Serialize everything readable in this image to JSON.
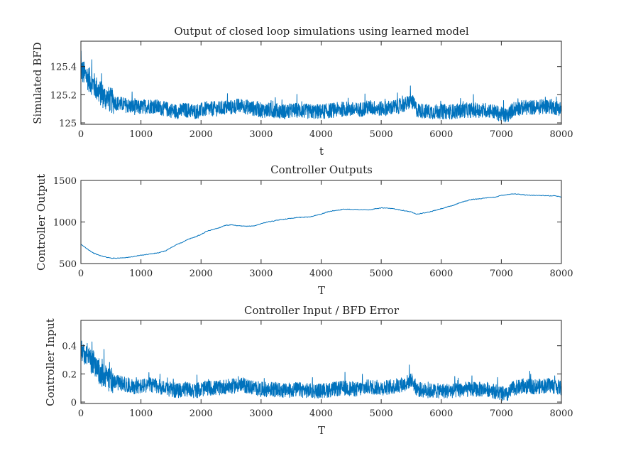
{
  "colors": {
    "series": "#0072bd",
    "axis": "#262626",
    "background": "#ffffff"
  },
  "chart_data": [
    {
      "type": "line",
      "title": "Output of closed loop simulations using learned model",
      "xlabel": "t",
      "ylabel": "Simulated BFD",
      "xlim": [
        0,
        8000
      ],
      "ylim": [
        124.99,
        125.58
      ],
      "xticks": [
        0,
        1000,
        2000,
        3000,
        4000,
        5000,
        6000,
        7000,
        8000
      ],
      "xtick_labels": [
        "0",
        "1000",
        "2000",
        "3000",
        "4000",
        "5000",
        "6000",
        "7000",
        "8000"
      ],
      "yticks": [
        125,
        125.2,
        125.4
      ],
      "ytick_labels": [
        "125",
        "125.2",
        "125.4"
      ],
      "grid": false,
      "series": [
        {
          "x": [
            0,
            50,
            100,
            150,
            200,
            250,
            300,
            350,
            400,
            450,
            500,
            600,
            700,
            800,
            900,
            1000,
            1100,
            1200,
            1300,
            1400,
            1500,
            1600,
            1700,
            1800,
            1900,
            2000,
            2100,
            2200,
            2300,
            2400,
            2500,
            2600,
            2700,
            2800,
            2900,
            3000,
            3200,
            3400,
            3600,
            3800,
            4000,
            4200,
            4400,
            4600,
            4800,
            5000,
            5200,
            5400,
            5500,
            5600,
            5800,
            6000,
            6200,
            6400,
            6600,
            6800,
            7000,
            7100,
            7200,
            7400,
            7600,
            7800,
            7900,
            8000
          ],
          "values": [
            125.38,
            125.35,
            125.33,
            125.3,
            125.28,
            125.25,
            125.22,
            125.2,
            125.18,
            125.17,
            125.16,
            125.14,
            125.13,
            125.12,
            125.11,
            125.11,
            125.12,
            125.12,
            125.11,
            125.1,
            125.09,
            125.08,
            125.09,
            125.09,
            125.08,
            125.09,
            125.1,
            125.1,
            125.1,
            125.11,
            125.11,
            125.12,
            125.12,
            125.11,
            125.1,
            125.09,
            125.09,
            125.08,
            125.09,
            125.08,
            125.08,
            125.09,
            125.1,
            125.09,
            125.11,
            125.1,
            125.11,
            125.13,
            125.16,
            125.09,
            125.08,
            125.08,
            125.08,
            125.09,
            125.09,
            125.09,
            125.06,
            125.05,
            125.1,
            125.11,
            125.11,
            125.12,
            125.11,
            125.1
          ]
        }
      ]
    },
    {
      "type": "line",
      "title": "Controller Outputs",
      "xlabel": "T",
      "ylabel": "Controller Output",
      "xlim": [
        0,
        8000
      ],
      "ylim": [
        500,
        1500
      ],
      "xticks": [
        0,
        1000,
        2000,
        3000,
        4000,
        5000,
        6000,
        7000,
        8000
      ],
      "xtick_labels": [
        "0",
        "1000",
        "2000",
        "3000",
        "4000",
        "5000",
        "6000",
        "7000",
        "8000"
      ],
      "yticks": [
        500,
        1000,
        1500
      ],
      "ytick_labels": [
        "500",
        "1000",
        "1500"
      ],
      "grid": false,
      "series": [
        {
          "x": [
            0,
            100,
            200,
            300,
            400,
            500,
            600,
            800,
            1000,
            1200,
            1300,
            1400,
            1500,
            1600,
            1700,
            1800,
            1900,
            2000,
            2100,
            2200,
            2300,
            2400,
            2500,
            2600,
            2700,
            2800,
            2900,
            3000,
            3100,
            3200,
            3300,
            3400,
            3600,
            3800,
            4000,
            4100,
            4200,
            4400,
            4600,
            4800,
            5000,
            5200,
            5400,
            5500,
            5600,
            5800,
            6000,
            6200,
            6300,
            6500,
            6700,
            6900,
            7000,
            7200,
            7400,
            7600,
            7800,
            7900,
            8000
          ],
          "values": [
            730,
            680,
            630,
            600,
            580,
            565,
            565,
            575,
            600,
            620,
            630,
            650,
            690,
            730,
            760,
            795,
            820,
            850,
            890,
            910,
            930,
            960,
            965,
            955,
            950,
            950,
            955,
            980,
            1000,
            1010,
            1025,
            1035,
            1055,
            1060,
            1095,
            1120,
            1135,
            1155,
            1150,
            1145,
            1170,
            1160,
            1135,
            1120,
            1095,
            1120,
            1160,
            1200,
            1230,
            1270,
            1285,
            1300,
            1320,
            1340,
            1325,
            1320,
            1315,
            1315,
            1300
          ]
        }
      ]
    },
    {
      "type": "line",
      "title": "Controller Input / BFD Error",
      "xlabel": "T",
      "ylabel": "Controller Input",
      "xlim": [
        0,
        8000
      ],
      "ylim": [
        -0.01,
        0.58
      ],
      "xticks": [
        0,
        1000,
        2000,
        3000,
        4000,
        5000,
        6000,
        7000,
        8000
      ],
      "xtick_labels": [
        "0",
        "1000",
        "2000",
        "3000",
        "4000",
        "5000",
        "6000",
        "7000",
        "8000"
      ],
      "yticks": [
        0,
        0.2,
        0.4
      ],
      "ytick_labels": [
        "0",
        "0.2",
        "0.4"
      ],
      "grid": false,
      "series": [
        {
          "x": [
            0,
            50,
            100,
            150,
            200,
            250,
            300,
            350,
            400,
            450,
            500,
            600,
            700,
            800,
            900,
            1000,
            1100,
            1200,
            1300,
            1400,
            1500,
            1600,
            1700,
            1800,
            1900,
            2000,
            2100,
            2200,
            2300,
            2400,
            2500,
            2600,
            2700,
            2800,
            2900,
            3000,
            3200,
            3400,
            3600,
            3800,
            4000,
            4200,
            4400,
            4600,
            4800,
            5000,
            5200,
            5400,
            5500,
            5600,
            5800,
            6000,
            6200,
            6400,
            6600,
            6800,
            7000,
            7100,
            7200,
            7400,
            7600,
            7800,
            7900,
            8000
          ],
          "values": [
            0.38,
            0.35,
            0.33,
            0.3,
            0.28,
            0.25,
            0.22,
            0.2,
            0.18,
            0.17,
            0.16,
            0.14,
            0.13,
            0.12,
            0.11,
            0.11,
            0.12,
            0.12,
            0.11,
            0.1,
            0.09,
            0.08,
            0.09,
            0.09,
            0.08,
            0.09,
            0.1,
            0.1,
            0.1,
            0.11,
            0.11,
            0.12,
            0.12,
            0.11,
            0.1,
            0.09,
            0.09,
            0.08,
            0.09,
            0.08,
            0.08,
            0.09,
            0.1,
            0.09,
            0.11,
            0.1,
            0.11,
            0.13,
            0.16,
            0.09,
            0.08,
            0.08,
            0.08,
            0.09,
            0.09,
            0.09,
            0.06,
            0.05,
            0.1,
            0.11,
            0.11,
            0.12,
            0.11,
            0.1
          ]
        }
      ]
    }
  ]
}
